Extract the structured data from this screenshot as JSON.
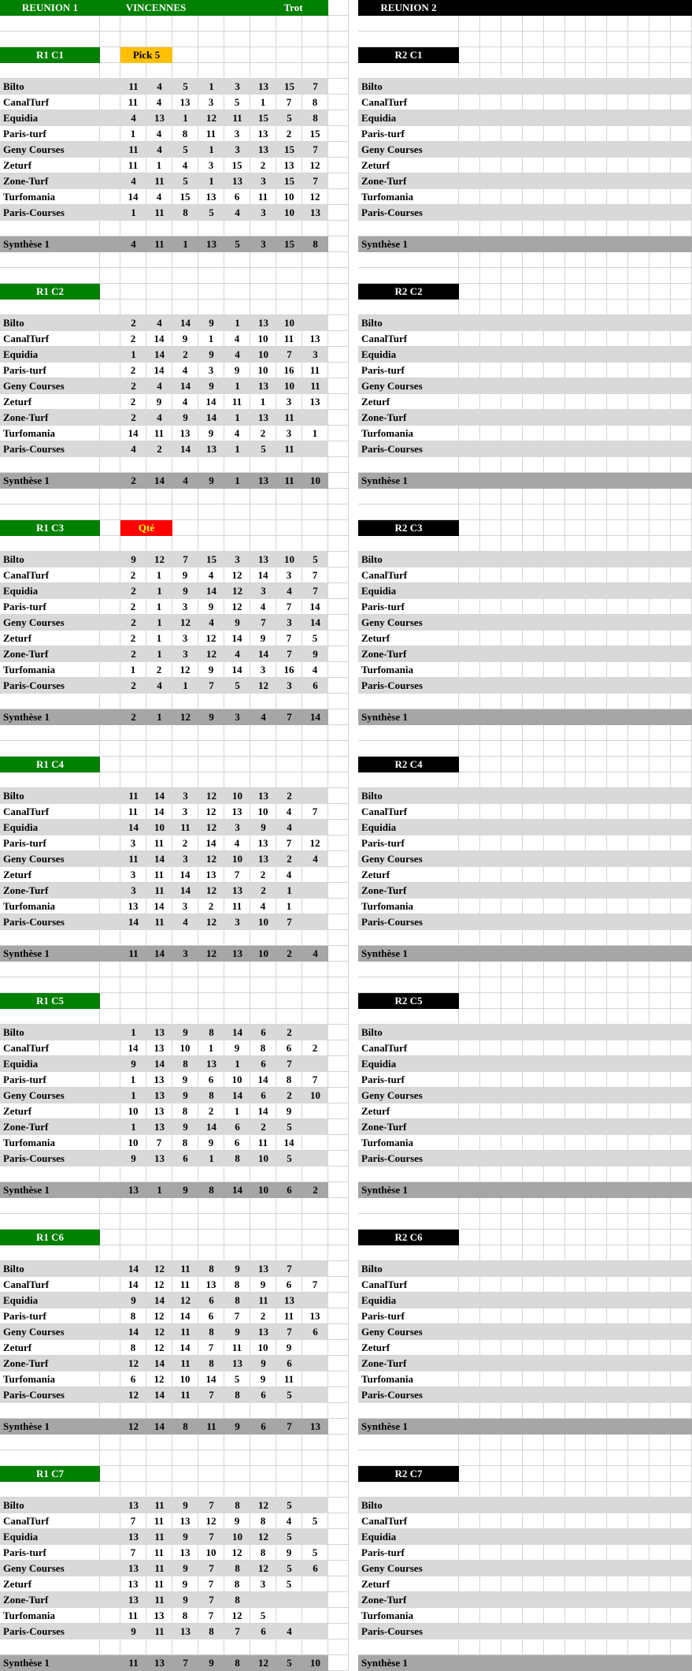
{
  "header": {
    "reunion1": "REUNION 1",
    "venue": "VINCENNES",
    "discipline": "Trot",
    "reunion2": "REUNION 2"
  },
  "labels": {
    "synthese": "Synthèse 1"
  },
  "sources": [
    "Bilto",
    "CanalTurf",
    "Equidia",
    "Paris-turf",
    "Geny Courses",
    "Zeturf",
    "Zone-Turf",
    "Turfomania",
    "Paris-Courses"
  ],
  "colors": {
    "header_green": "#008000",
    "header_black": "#000000",
    "stripe_grey": "#D9D9D9",
    "synthese_grey": "#A6A6A6",
    "gridline": "#D4D4D4",
    "pick5_bg": "#FFC000",
    "pick5_text": "#000000",
    "qte_bg": "#FF0000",
    "qte_text": "#FFFF00"
  },
  "sections": [
    {
      "left_label": "R1 C1",
      "right_label": "R2 C1",
      "tag": {
        "label": "Pick 5",
        "kind": "pick5",
        "color": "#FFC000",
        "text_color": "#000000"
      },
      "picks": [
        [
          11,
          4,
          5,
          1,
          3,
          13,
          15,
          7
        ],
        [
          11,
          4,
          13,
          3,
          5,
          1,
          7,
          8
        ],
        [
          4,
          13,
          1,
          12,
          11,
          15,
          5,
          8
        ],
        [
          1,
          4,
          8,
          11,
          3,
          13,
          2,
          15
        ],
        [
          11,
          4,
          5,
          1,
          3,
          13,
          15,
          7
        ],
        [
          11,
          1,
          4,
          3,
          15,
          2,
          13,
          12
        ],
        [
          4,
          11,
          5,
          1,
          13,
          3,
          15,
          7
        ],
        [
          14,
          4,
          15,
          13,
          6,
          11,
          10,
          12
        ],
        [
          1,
          11,
          8,
          5,
          4,
          3,
          10,
          13
        ]
      ],
      "synthese": [
        4,
        11,
        1,
        13,
        5,
        3,
        15,
        8
      ]
    },
    {
      "left_label": "R1 C2",
      "right_label": "R2 C2",
      "tag": null,
      "picks": [
        [
          2,
          4,
          14,
          9,
          1,
          13,
          10
        ],
        [
          2,
          14,
          9,
          1,
          4,
          10,
          11,
          13
        ],
        [
          1,
          14,
          2,
          9,
          4,
          10,
          7,
          3
        ],
        [
          2,
          14,
          4,
          3,
          9,
          10,
          16,
          11
        ],
        [
          2,
          4,
          14,
          9,
          1,
          13,
          10,
          11
        ],
        [
          2,
          9,
          4,
          14,
          11,
          1,
          3,
          13
        ],
        [
          2,
          4,
          9,
          14,
          1,
          13,
          11
        ],
        [
          14,
          11,
          13,
          9,
          4,
          2,
          3,
          1
        ],
        [
          4,
          2,
          14,
          13,
          1,
          5,
          11
        ]
      ],
      "synthese": [
        2,
        14,
        4,
        9,
        1,
        13,
        11,
        10
      ]
    },
    {
      "left_label": "R1 C3",
      "right_label": "R2 C3",
      "tag": {
        "label": "Qté",
        "kind": "qte",
        "color": "#FF0000",
        "text_color": "#FFFF00"
      },
      "picks": [
        [
          9,
          12,
          7,
          15,
          3,
          13,
          10,
          5
        ],
        [
          2,
          1,
          9,
          4,
          12,
          14,
          3,
          7
        ],
        [
          2,
          1,
          9,
          14,
          12,
          3,
          4,
          7
        ],
        [
          2,
          1,
          3,
          9,
          12,
          4,
          7,
          14
        ],
        [
          2,
          1,
          12,
          4,
          9,
          7,
          3,
          14
        ],
        [
          2,
          1,
          3,
          12,
          14,
          9,
          7,
          5
        ],
        [
          2,
          1,
          3,
          12,
          4,
          14,
          7,
          9
        ],
        [
          1,
          2,
          12,
          9,
          14,
          3,
          16,
          4
        ],
        [
          2,
          4,
          1,
          7,
          5,
          12,
          3,
          6
        ]
      ],
      "synthese": [
        2,
        1,
        12,
        9,
        3,
        4,
        7,
        14
      ]
    },
    {
      "left_label": "R1 C4",
      "right_label": "R2 C4",
      "tag": null,
      "picks": [
        [
          11,
          14,
          3,
          12,
          10,
          13,
          2
        ],
        [
          11,
          14,
          3,
          12,
          13,
          10,
          4,
          7
        ],
        [
          14,
          10,
          11,
          12,
          3,
          9,
          4
        ],
        [
          3,
          11,
          2,
          14,
          4,
          13,
          7,
          12
        ],
        [
          11,
          14,
          3,
          12,
          10,
          13,
          2,
          4
        ],
        [
          3,
          11,
          14,
          13,
          7,
          2,
          4
        ],
        [
          3,
          11,
          14,
          12,
          13,
          2,
          1
        ],
        [
          13,
          14,
          3,
          2,
          11,
          4,
          1
        ],
        [
          14,
          11,
          4,
          12,
          3,
          10,
          7
        ]
      ],
      "synthese": [
        11,
        14,
        3,
        12,
        13,
        10,
        2,
        4
      ]
    },
    {
      "left_label": "R1 C5",
      "right_label": "R2 C5",
      "tag": null,
      "picks": [
        [
          1,
          13,
          9,
          8,
          14,
          6,
          2
        ],
        [
          14,
          13,
          10,
          1,
          9,
          8,
          6,
          2
        ],
        [
          9,
          14,
          8,
          13,
          1,
          6,
          7
        ],
        [
          1,
          13,
          9,
          6,
          10,
          14,
          8,
          7
        ],
        [
          1,
          13,
          9,
          8,
          14,
          6,
          2,
          10
        ],
        [
          10,
          13,
          8,
          2,
          1,
          14,
          9
        ],
        [
          1,
          13,
          9,
          14,
          6,
          2,
          5
        ],
        [
          10,
          7,
          8,
          9,
          6,
          11,
          14
        ],
        [
          9,
          13,
          6,
          1,
          8,
          10,
          5
        ]
      ],
      "synthese": [
        13,
        1,
        9,
        8,
        14,
        10,
        6,
        2
      ]
    },
    {
      "left_label": "R1 C6",
      "right_label": "R2 C6",
      "tag": null,
      "picks": [
        [
          14,
          12,
          11,
          8,
          9,
          13,
          7
        ],
        [
          14,
          12,
          11,
          13,
          8,
          9,
          6,
          7
        ],
        [
          9,
          14,
          12,
          6,
          8,
          11,
          13
        ],
        [
          8,
          12,
          14,
          6,
          7,
          2,
          11,
          13
        ],
        [
          14,
          12,
          11,
          8,
          9,
          13,
          7,
          6
        ],
        [
          8,
          12,
          14,
          7,
          11,
          10,
          9
        ],
        [
          12,
          14,
          11,
          8,
          13,
          9,
          6
        ],
        [
          6,
          12,
          10,
          14,
          5,
          9,
          11
        ],
        [
          12,
          14,
          11,
          7,
          8,
          6,
          5
        ]
      ],
      "synthese": [
        12,
        14,
        8,
        11,
        9,
        6,
        7,
        13
      ]
    },
    {
      "left_label": "R1 C7",
      "right_label": "R2 C7",
      "tag": null,
      "picks": [
        [
          13,
          11,
          9,
          7,
          8,
          12,
          5
        ],
        [
          7,
          11,
          13,
          12,
          9,
          8,
          4,
          5
        ],
        [
          13,
          11,
          9,
          7,
          10,
          12,
          5
        ],
        [
          7,
          11,
          13,
          10,
          12,
          8,
          9,
          5
        ],
        [
          13,
          11,
          9,
          7,
          8,
          12,
          5,
          6
        ],
        [
          13,
          11,
          9,
          7,
          8,
          3,
          5
        ],
        [
          13,
          11,
          9,
          7,
          8
        ],
        [
          11,
          13,
          8,
          7,
          12,
          5
        ],
        [
          9,
          11,
          13,
          8,
          7,
          6,
          4
        ]
      ],
      "synthese": [
        11,
        13,
        7,
        9,
        8,
        12,
        5,
        10
      ]
    }
  ]
}
